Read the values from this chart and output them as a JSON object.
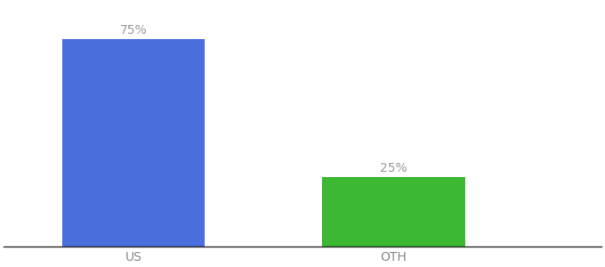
{
  "categories": [
    "US",
    "OTH"
  ],
  "values": [
    75,
    25
  ],
  "bar_colors": [
    "#4a6edb",
    "#3cb832"
  ],
  "label_texts": [
    "75%",
    "25%"
  ],
  "label_color": "#999999",
  "label_fontsize": 10,
  "tick_fontsize": 10,
  "tick_color": "#888888",
  "background_color": "#ffffff",
  "ylim": [
    0,
    88
  ],
  "bar_width": 0.55,
  "figsize": [
    6.8,
    3.0
  ],
  "dpi": 100,
  "xlim": [
    -0.5,
    1.8
  ]
}
